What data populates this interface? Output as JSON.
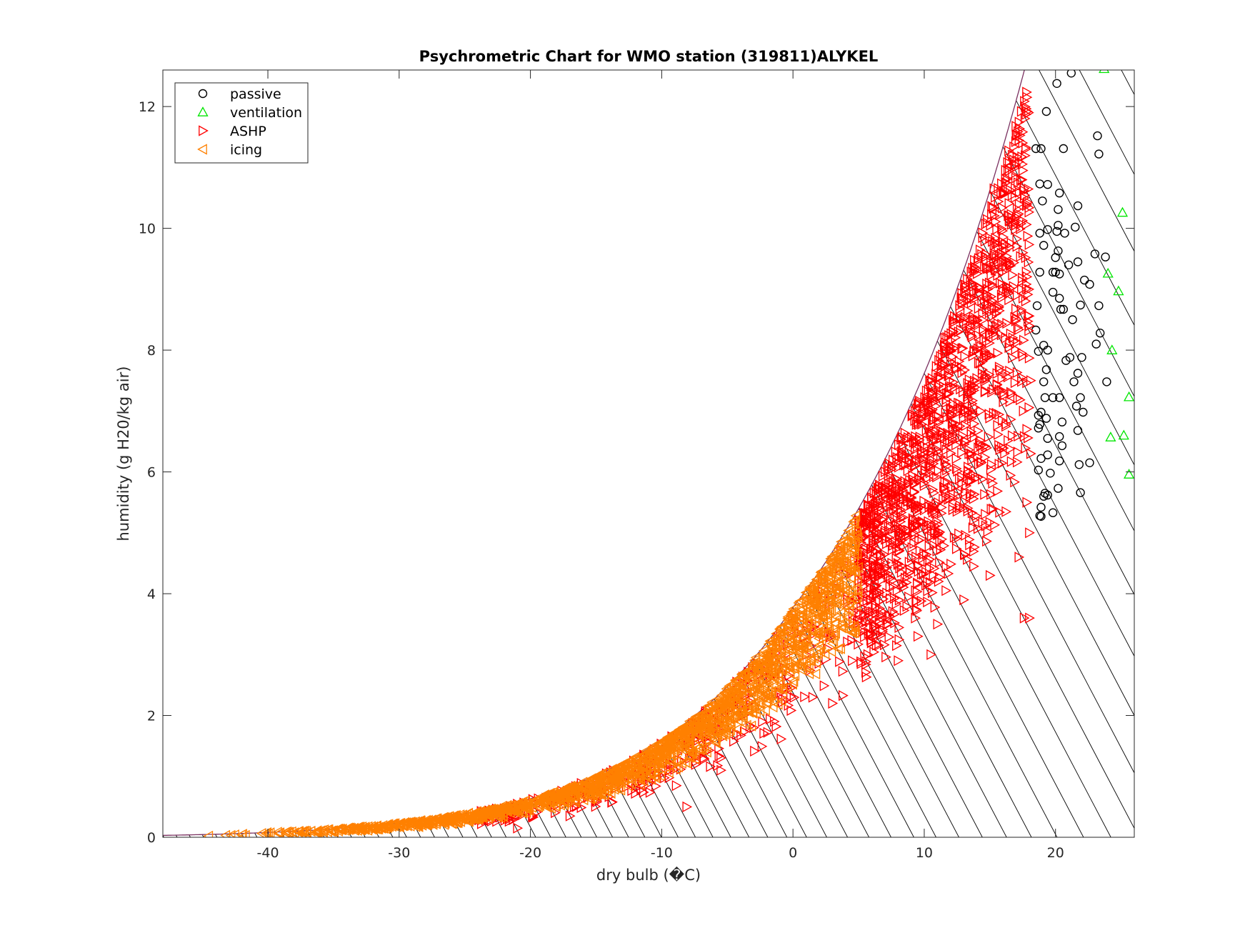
{
  "chart_data": {
    "type": "scatter",
    "title": "Psychrometric Chart for WMO station (319811)ALYKEL",
    "xlabel": "dry bulb (�C)",
    "ylabel": "humidity (g H20/kg air)",
    "xlim": [
      -48,
      26
    ],
    "ylim": [
      0,
      12.6
    ],
    "xticks": [
      -40,
      -30,
      -20,
      -10,
      0,
      10,
      20
    ],
    "yticks": [
      0,
      2,
      4,
      6,
      8,
      10,
      12
    ],
    "grid": false,
    "legend_position": "top-left",
    "saturation_curve": {
      "color": "#7a3060"
    },
    "wet_bulb_lines": {
      "color": "#000000",
      "t_start": -48,
      "t_end": 40,
      "step": 1
    },
    "series": [
      {
        "name": "passive",
        "marker": "circle",
        "color": "#000000",
        "points": [
          [
            21.2,
            12.55
          ],
          [
            20.1,
            12.38
          ],
          [
            19.3,
            11.92
          ],
          [
            23.2,
            11.52
          ],
          [
            18.5,
            11.31
          ],
          [
            18.9,
            11.31
          ],
          [
            20.6,
            11.31
          ],
          [
            23.3,
            11.22
          ],
          [
            18.8,
            10.73
          ],
          [
            19.4,
            10.72
          ],
          [
            20.3,
            10.58
          ],
          [
            19.0,
            10.45
          ],
          [
            21.7,
            10.37
          ],
          [
            20.2,
            10.31
          ],
          [
            20.2,
            10.05
          ],
          [
            21.5,
            10.02
          ],
          [
            19.4,
            9.98
          ],
          [
            20.1,
            9.95
          ],
          [
            18.8,
            9.92
          ],
          [
            20.7,
            9.92
          ],
          [
            20.2,
            9.63
          ],
          [
            23.0,
            9.58
          ],
          [
            23.8,
            9.53
          ],
          [
            19.1,
            9.72
          ],
          [
            20.0,
            9.52
          ],
          [
            21.0,
            9.4
          ],
          [
            21.7,
            9.45
          ],
          [
            18.8,
            9.28
          ],
          [
            19.8,
            9.28
          ],
          [
            20.0,
            9.28
          ],
          [
            20.3,
            9.25
          ],
          [
            22.2,
            9.15
          ],
          [
            22.6,
            9.08
          ],
          [
            20.3,
            8.85
          ],
          [
            19.8,
            8.95
          ],
          [
            20.4,
            8.67
          ],
          [
            20.6,
            8.67
          ],
          [
            18.6,
            8.73
          ],
          [
            23.3,
            8.73
          ],
          [
            21.9,
            8.74
          ],
          [
            21.3,
            8.5
          ],
          [
            18.5,
            8.33
          ],
          [
            23.4,
            8.28
          ],
          [
            23.1,
            8.1
          ],
          [
            19.1,
            8.08
          ],
          [
            19.4,
            8.0
          ],
          [
            18.7,
            7.98
          ],
          [
            21.1,
            7.88
          ],
          [
            22.0,
            7.88
          ],
          [
            20.8,
            7.83
          ],
          [
            19.3,
            7.68
          ],
          [
            21.7,
            7.62
          ],
          [
            19.1,
            7.48
          ],
          [
            21.4,
            7.48
          ],
          [
            23.9,
            7.48
          ],
          [
            19.2,
            7.22
          ],
          [
            19.8,
            7.22
          ],
          [
            20.3,
            7.22
          ],
          [
            21.9,
            7.22
          ],
          [
            22.1,
            6.98
          ],
          [
            21.6,
            7.08
          ],
          [
            18.9,
            6.98
          ],
          [
            18.7,
            6.93
          ],
          [
            19.3,
            6.88
          ],
          [
            18.8,
            6.78
          ],
          [
            18.7,
            6.72
          ],
          [
            20.5,
            6.82
          ],
          [
            21.7,
            6.68
          ],
          [
            19.4,
            6.55
          ],
          [
            20.3,
            6.58
          ],
          [
            20.5,
            6.43
          ],
          [
            19.4,
            6.28
          ],
          [
            18.9,
            6.22
          ],
          [
            20.3,
            6.18
          ],
          [
            21.8,
            6.12
          ],
          [
            22.6,
            6.15
          ],
          [
            18.7,
            6.03
          ],
          [
            19.6,
            5.98
          ],
          [
            20.2,
            5.73
          ],
          [
            21.9,
            5.66
          ],
          [
            19.2,
            5.65
          ],
          [
            19.1,
            5.6
          ],
          [
            19.4,
            5.62
          ],
          [
            18.9,
            5.42
          ],
          [
            19.8,
            5.33
          ],
          [
            18.8,
            5.28
          ],
          [
            18.9,
            5.27
          ]
        ]
      },
      {
        "name": "ventilation",
        "marker": "triangle-up",
        "color": "#00e600",
        "points": [
          [
            23.7,
            12.62
          ],
          [
            25.1,
            10.26
          ],
          [
            24.0,
            9.26
          ],
          [
            24.8,
            8.97
          ],
          [
            24.3,
            8.0
          ],
          [
            25.6,
            7.23
          ],
          [
            24.2,
            6.57
          ],
          [
            25.2,
            6.6
          ],
          [
            25.6,
            5.96
          ]
        ]
      },
      {
        "name": "ASHP",
        "marker": "triangle-right",
        "color": "#ff0000",
        "generated": true,
        "t_range": [
          -24,
          19
        ],
        "t_dense_min": 5.0,
        "count": 1700,
        "rh_range": [
          0.45,
          0.97
        ],
        "extra_points": [
          [
            17.5,
            10.95
          ],
          [
            15.3,
            10.65
          ],
          [
            16.9,
            10.1
          ],
          [
            17.5,
            9.6
          ],
          [
            16.0,
            9.7
          ],
          [
            17.4,
            9.0
          ],
          [
            18.0,
            8.4
          ],
          [
            17.5,
            7.9
          ],
          [
            18.1,
            7.5
          ],
          [
            17.8,
            6.7
          ],
          [
            18.1,
            6.3
          ],
          [
            17.8,
            5.5
          ],
          [
            18.0,
            5.0
          ],
          [
            17.2,
            4.6
          ],
          [
            18.0,
            3.6
          ],
          [
            17.6,
            3.6
          ],
          [
            15.0,
            4.3
          ],
          [
            13.0,
            3.9
          ],
          [
            10.5,
            3.0
          ],
          [
            11.0,
            3.5
          ],
          [
            8.0,
            2.9
          ],
          [
            9.5,
            3.3
          ],
          [
            4.5,
            2.9
          ],
          [
            3.0,
            2.2
          ],
          [
            1.5,
            2.3
          ],
          [
            -3.0,
            1.8
          ],
          [
            -5.5,
            1.1
          ],
          [
            -8.1,
            0.5
          ],
          [
            -6.8,
            1.3
          ],
          [
            -12.0,
            0.8
          ],
          [
            -17.0,
            0.35
          ],
          [
            -21.0,
            0.15
          ]
        ]
      },
      {
        "name": "icing",
        "marker": "triangle-left",
        "color": "#ff8000",
        "generated": true,
        "t_range": [
          -41.5,
          5
        ],
        "count": 1800,
        "rh_range": [
          0.62,
          0.99
        ],
        "extra_points": [
          [
            -44.5,
            0.02
          ],
          [
            -43.2,
            0.03
          ],
          [
            -42.8,
            0.03
          ],
          [
            -42.5,
            0.04
          ],
          [
            -42.0,
            0.04
          ],
          [
            -41.9,
            0.05
          ],
          [
            -41.7,
            0.03
          ],
          [
            4.8,
            5.28
          ],
          [
            4.7,
            5.15
          ],
          [
            4.2,
            4.85
          ],
          [
            3.6,
            4.6
          ]
        ]
      }
    ]
  }
}
